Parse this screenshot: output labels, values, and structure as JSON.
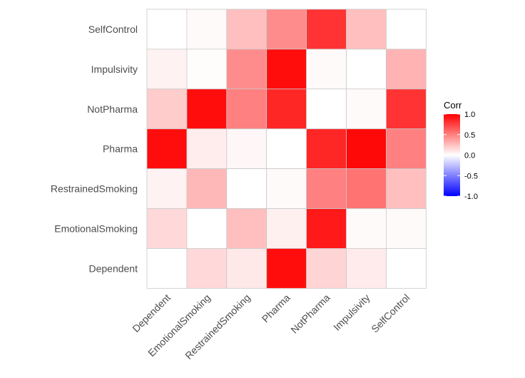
{
  "chart_data": {
    "type": "heatmap",
    "title": "",
    "xlabel": "",
    "ylabel": "",
    "x_categories": [
      "Dependent",
      "EmotionalSmoking",
      "RestrainedSmoking",
      "Pharma",
      "NotPharma",
      "Impulsivity",
      "SelfControl"
    ],
    "y_categories_top_to_bottom": [
      "SelfControl",
      "Impulsivity",
      "NotPharma",
      "Pharma",
      "RestrainedSmoking",
      "EmotionalSmoking",
      "Dependent"
    ],
    "values_top_to_bottom": [
      [
        0.0,
        0.02,
        0.25,
        0.45,
        0.8,
        0.25,
        0.0
      ],
      [
        0.05,
        0.01,
        0.45,
        0.95,
        0.02,
        0.0,
        0.3
      ],
      [
        0.2,
        0.95,
        0.5,
        0.85,
        0.0,
        0.02,
        0.8
      ],
      [
        0.95,
        0.07,
        0.03,
        0.0,
        0.85,
        0.97,
        0.5
      ],
      [
        0.05,
        0.28,
        0.0,
        0.02,
        0.5,
        0.55,
        0.25
      ],
      [
        0.15,
        0.0,
        0.25,
        0.06,
        0.9,
        0.02,
        0.02
      ],
      [
        0.0,
        0.15,
        0.09,
        0.95,
        0.17,
        0.08,
        0.0
      ]
    ],
    "legend": {
      "title": "Corr",
      "ticks": [
        "1.0",
        "0.5",
        "0.0",
        "-0.5",
        "-1.0"
      ],
      "tick_values": [
        1.0,
        0.5,
        0.0,
        -0.5,
        -1.0
      ],
      "placement": "right",
      "low_color": "#0000ff",
      "mid_color": "#ffffff",
      "high_color": "#ff0000"
    },
    "range": [
      -1,
      1
    ],
    "grid": false
  }
}
